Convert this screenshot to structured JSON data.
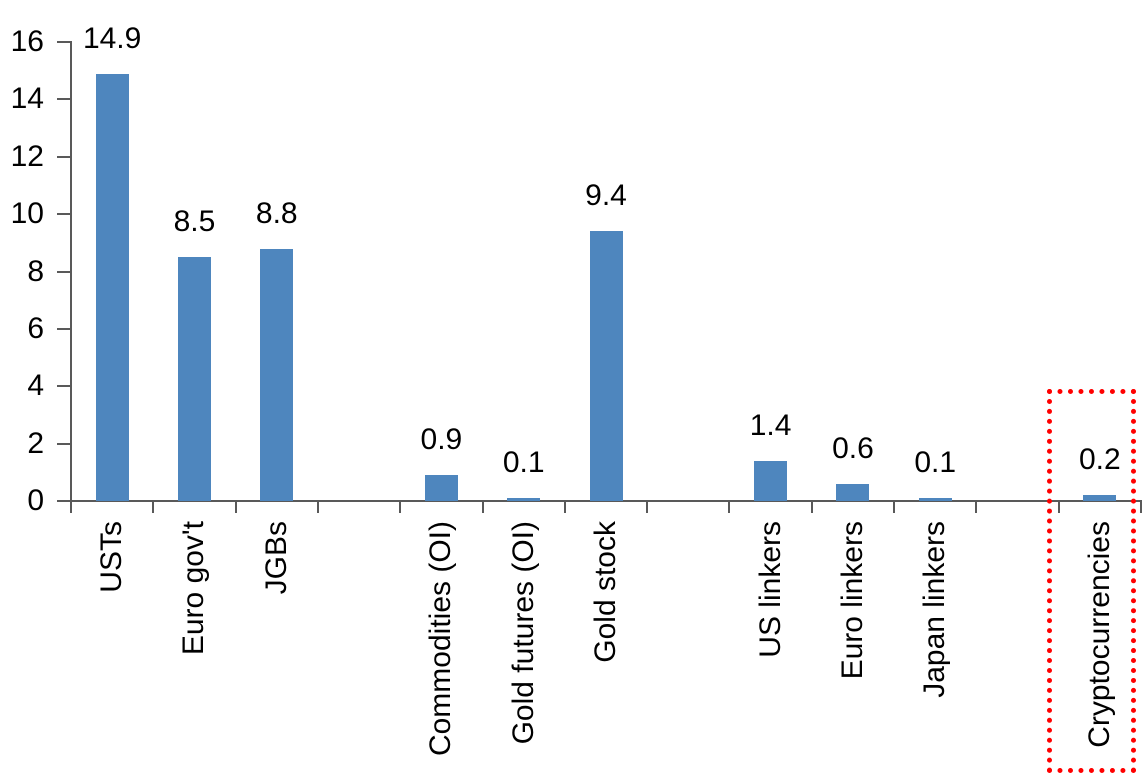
{
  "chart_data": {
    "type": "bar",
    "title": "",
    "xlabel": "",
    "ylabel": "",
    "ylim": [
      0,
      16
    ],
    "ytick_step": 2,
    "yticks": [
      0,
      2,
      4,
      6,
      8,
      10,
      12,
      14,
      16
    ],
    "grid": false,
    "legend": null,
    "data_labels": true,
    "category_label_rotation_deg": 90,
    "bar_color": "#4E86BE",
    "axis_color": "#595959",
    "text_color": "#000000",
    "categories": [
      "USTs",
      "Euro gov't",
      "JGBs",
      "Commodities (OI)",
      "Gold futures (OI)",
      "Gold stock",
      "US linkers",
      "Euro linkers",
      "Japan linkers",
      "Cryptocurrencies"
    ],
    "values": [
      14.9,
      8.5,
      8.8,
      0.9,
      0.1,
      9.4,
      1.4,
      0.6,
      0.1,
      0.2
    ],
    "groups": [
      {
        "categories": [
          "USTs",
          "Euro gov't",
          "JGBs"
        ],
        "values": [
          14.9,
          8.5,
          8.8
        ]
      },
      {
        "categories": [
          "Commodities (OI)",
          "Gold futures (OI)",
          "Gold stock"
        ],
        "values": [
          0.9,
          0.1,
          9.4
        ]
      },
      {
        "categories": [
          "US linkers",
          "Euro linkers",
          "Japan linkers"
        ],
        "values": [
          1.4,
          0.6,
          0.1
        ]
      },
      {
        "categories": [
          "Cryptocurrencies"
        ],
        "values": [
          0.2
        ]
      }
    ],
    "highlight": {
      "category": "Cryptocurrencies",
      "style": "dotted-box",
      "color": "#FF0000"
    }
  }
}
